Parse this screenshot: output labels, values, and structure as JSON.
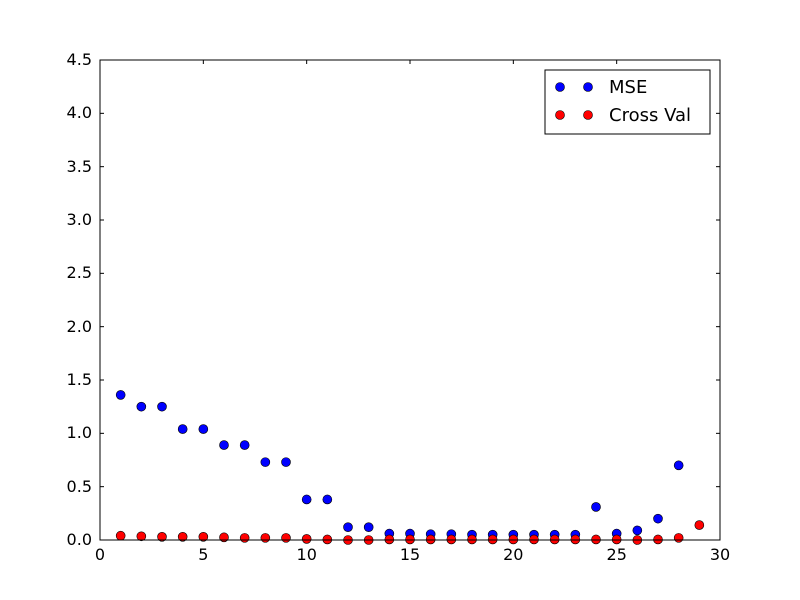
{
  "chart_data": {
    "type": "scatter",
    "title": "",
    "xlabel": "",
    "ylabel": "",
    "xlim": [
      0,
      30
    ],
    "ylim": [
      0,
      4.5
    ],
    "grid": false,
    "legend_position": "top-right",
    "x_ticks": [
      "0",
      "5",
      "10",
      "15",
      "20",
      "25",
      "30"
    ],
    "y_ticks": [
      "0.0",
      "0.5",
      "1.0",
      "1.5",
      "2.0",
      "2.5",
      "3.0",
      "3.5",
      "4.0",
      "4.5"
    ],
    "series": [
      {
        "name": "MSE",
        "color": "#0000ff",
        "x": [
          1,
          2,
          3,
          4,
          5,
          6,
          7,
          8,
          9,
          10,
          11,
          12,
          13,
          14,
          15,
          16,
          17,
          18,
          19,
          20,
          21,
          22,
          23,
          24,
          25,
          26,
          27,
          28
        ],
        "y": [
          1.36,
          1.25,
          1.25,
          1.04,
          1.04,
          0.89,
          0.89,
          0.73,
          0.73,
          0.38,
          0.38,
          0.12,
          0.12,
          0.06,
          0.06,
          0.055,
          0.055,
          0.05,
          0.05,
          0.05,
          0.05,
          0.05,
          0.05,
          0.31,
          0.06,
          0.09,
          0.2,
          0.7
        ]
      },
      {
        "name": "Cross Val",
        "color": "#ff0000",
        "x": [
          1,
          2,
          3,
          4,
          5,
          6,
          7,
          8,
          9,
          10,
          11,
          12,
          13,
          14,
          15,
          16,
          17,
          18,
          19,
          20,
          21,
          22,
          23,
          24,
          25,
          26,
          27,
          28,
          29
        ],
        "y": [
          0.04,
          0.035,
          0.03,
          0.03,
          0.03,
          0.025,
          0.02,
          0.02,
          0.02,
          0.01,
          0.005,
          0.0,
          0.0,
          0.005,
          0.005,
          0.005,
          0.005,
          0.005,
          0.005,
          0.005,
          0.005,
          0.005,
          0.005,
          0.005,
          0.005,
          0.0,
          0.005,
          0.02,
          0.14
        ]
      }
    ]
  }
}
